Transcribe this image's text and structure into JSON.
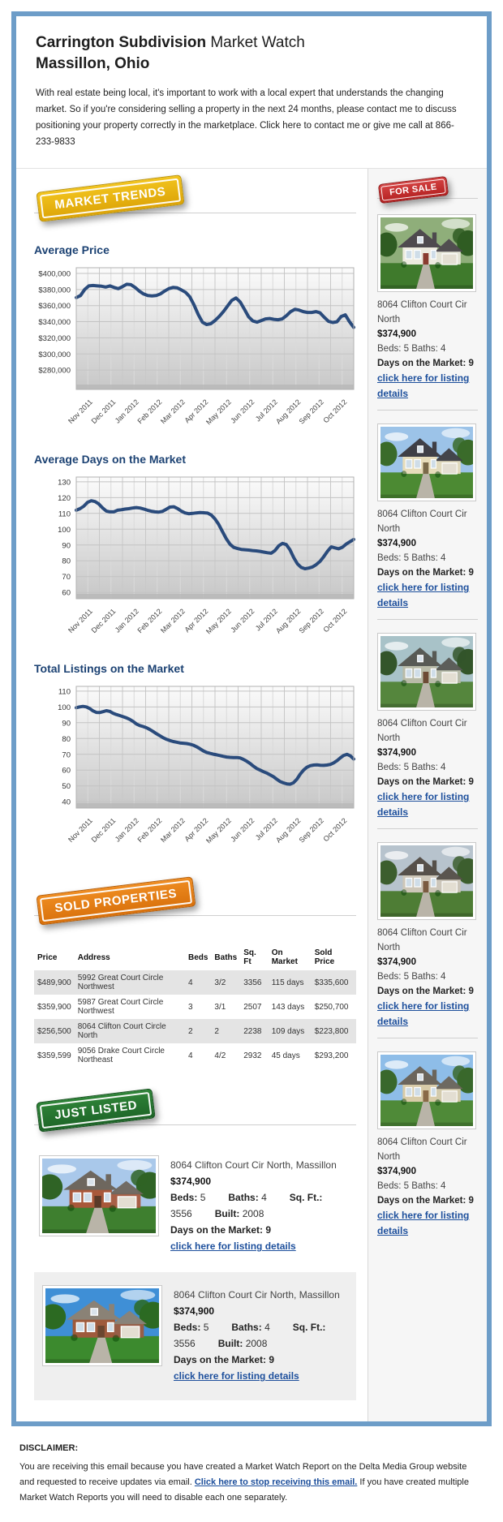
{
  "header": {
    "title_bold": "Carrington Subdivision",
    "title_rest": " Market Watch",
    "subtitle": "Massillon, Ohio",
    "intro": "With real estate being local, it's important to work with a local expert that understands the changing market. So if you're considering selling a property in the next 24 months, please contact me to discuss positioning your property correctly in the marketplace. Click here to contact me or give me call at 866-233-9833"
  },
  "badges": {
    "market_trends": "MARKET TRENDS",
    "for_sale": "FOR SALE",
    "sold_properties": "SOLD PROPERTIES",
    "just_listed": "JUST LISTED"
  },
  "colors": {
    "frame_border": "#6d9dc8",
    "chart_line": "#2a4b7c",
    "heading_blue": "#1c4273",
    "link_blue": "#1d4f9c",
    "badge_yellow": "#e5b010",
    "badge_red": "#c02f2f",
    "badge_orange": "#e47e16",
    "badge_green": "#26742f"
  },
  "chart_data": [
    {
      "type": "line",
      "title": "Average Price",
      "categories": [
        "Nov 2011",
        "Dec 2011",
        "Jan 2012",
        "Feb 2012",
        "Mar 2012",
        "Apr 2012",
        "May 2012",
        "Jun 2012",
        "Jul 2012",
        "Aug 2012",
        "Sep 2012",
        "Oct 2012"
      ],
      "ylim": [
        256000,
        407000
      ],
      "yticks": [
        400000,
        380000,
        360000,
        340000,
        320000,
        300000,
        280000
      ],
      "ytick_labels": [
        "$400,000",
        "$380,000",
        "$360,000",
        "$340,000",
        "$320,000",
        "$300,000",
        "$280,000"
      ],
      "legend": "none",
      "grid": true,
      "values": [
        370000,
        372500,
        380000,
        384500,
        385000,
        384500,
        384000,
        383000,
        384500,
        382500,
        381000,
        383500,
        386500,
        386000,
        382500,
        378000,
        374500,
        372500,
        372000,
        372500,
        374500,
        378000,
        381000,
        382500,
        382000,
        379500,
        376500,
        371000,
        361000,
        349000,
        339500,
        336500,
        337500,
        341500,
        346500,
        352500,
        359500,
        366500,
        369500,
        364500,
        355500,
        346000,
        341000,
        339500,
        341500,
        343500,
        344000,
        343000,
        342500,
        343500,
        347500,
        352500,
        355500,
        354500,
        352500,
        351500,
        351500,
        352500,
        351000,
        345500,
        340500,
        339000,
        340000,
        346500,
        348500,
        340000,
        333000
      ]
    },
    {
      "type": "line",
      "title": "Average Days on the Market",
      "categories": [
        "Nov 2011",
        "Dec 2011",
        "Jan 2012",
        "Feb 2012",
        "Mar 2012",
        "Apr 2012",
        "May 2012",
        "Jun 2012",
        "Jul 2012",
        "Aug 2012",
        "Sep 2012",
        "Oct 2012"
      ],
      "ylim": [
        56,
        133
      ],
      "yticks": [
        130,
        120,
        110,
        100,
        90,
        80,
        70,
        60
      ],
      "ytick_labels": [
        "130",
        "120",
        "110",
        "100",
        "90",
        "80",
        "70",
        "60"
      ],
      "legend": "none",
      "grid": true,
      "values": [
        112,
        113,
        114.5,
        117,
        118,
        117.5,
        116,
        113.5,
        111.5,
        111,
        111,
        112,
        112.3,
        112.7,
        113,
        113.4,
        113.7,
        113.4,
        112.8,
        112,
        111.4,
        111,
        110.8,
        111.3,
        112.6,
        114,
        114.2,
        113.1,
        111.5,
        110.3,
        109.8,
        110,
        110.3,
        110.5,
        110.4,
        110.2,
        109,
        106.5,
        103,
        98.5,
        94,
        90.5,
        88.5,
        87.8,
        87.2,
        87,
        86.8,
        86.5,
        86.3,
        86,
        85.5,
        85.1,
        84.8,
        86.5,
        89.5,
        91,
        90.3,
        87,
        82,
        78,
        75.8,
        75,
        75.4,
        76.1,
        77.6,
        79.6,
        82.6,
        86,
        88.8,
        88.2,
        87.6,
        88.6,
        90.6,
        92.1,
        93.5
      ]
    },
    {
      "type": "line",
      "title": "Total Listings on the Market",
      "categories": [
        "Nov 2011",
        "Dec 2011",
        "Jan 2012",
        "Feb 2012",
        "Mar 2012",
        "Apr 2012",
        "May 2012",
        "Jun 2012",
        "Jul 2012",
        "Aug 2012",
        "Sep 2012",
        "Oct 2012"
      ],
      "ylim": [
        36,
        113
      ],
      "yticks": [
        110,
        100,
        90,
        80,
        70,
        60,
        50,
        40
      ],
      "ytick_labels": [
        "110",
        "100",
        "90",
        "80",
        "70",
        "60",
        "50",
        "40"
      ],
      "legend": "none",
      "grid": true,
      "values": [
        99.5,
        100,
        100.3,
        100,
        99,
        97.5,
        96.5,
        96.4,
        97,
        97.6,
        97.2,
        96,
        95.2,
        94.5,
        93.8,
        93.1,
        92.1,
        90.8,
        89.2,
        88.2,
        87.6,
        86.8,
        85.7,
        84.4,
        83,
        81.8,
        80.5,
        79.5,
        78.7,
        78.1,
        77.7,
        77.2,
        77,
        76.8,
        76.4,
        75.8,
        74.8,
        73.5,
        72.2,
        71.2,
        70.6,
        70.1,
        69.7,
        69.2,
        68.7,
        68.3,
        68.1,
        68,
        68,
        67.7,
        66.8,
        65.6,
        64.2,
        62.5,
        61,
        60,
        59,
        58.1,
        57,
        55.8,
        54.2,
        52.8,
        51.9,
        51.3,
        51.1,
        52,
        54.3,
        57.5,
        60,
        61.8,
        62.8,
        63.2,
        63.3,
        63.1,
        63,
        63.2,
        63.6,
        64.6,
        66,
        67.8,
        69.3,
        70,
        69,
        67
      ]
    }
  ],
  "sold_table": {
    "headers": [
      "Price",
      "Address",
      "Beds",
      "Baths",
      "Sq. Ft",
      "On Market",
      "Sold Price"
    ],
    "rows": [
      [
        "$489,900",
        "5992 Great Court Circle Northwest",
        "4",
        "3/2",
        "3356",
        "115 days",
        "$335,600"
      ],
      [
        "$359,900",
        "5987 Great Court Circle Northwest",
        "3",
        "3/1",
        "2507",
        "143 days",
        "$250,700"
      ],
      [
        "$256,500",
        "8064 Clifton Court Circle North",
        "2",
        "2",
        "2238",
        "109 days",
        "$223,800"
      ],
      [
        "$359,599",
        "9056 Drake Court Circle Northeast",
        "4",
        "4/2",
        "2932",
        "45 days",
        "$293,200"
      ]
    ]
  },
  "for_sale_listings": [
    {
      "address": "8064 Clifton Court Cir North",
      "price": "$374,900",
      "beds_baths": "Beds: 5 Baths: 4",
      "dom": "Days on the Market: 9",
      "link": "click here for listing details"
    },
    {
      "address": "8064 Clifton Court Cir North",
      "price": "$374,900",
      "beds_baths": "Beds: 5 Baths: 4",
      "dom": "Days on the Market: 9",
      "link": "click here for listing details"
    },
    {
      "address": "8064 Clifton Court Cir North",
      "price": "$374,900",
      "beds_baths": "Beds: 5 Baths: 4",
      "dom": "Days on the Market: 9",
      "link": "click here for listing details"
    },
    {
      "address": "8064 Clifton Court Cir North",
      "price": "$374,900",
      "beds_baths": "Beds: 5 Baths: 4",
      "dom": "Days on the Market: 9",
      "link": "click here for listing details"
    },
    {
      "address": "8064 Clifton Court Cir North",
      "price": "$374,900",
      "beds_baths": "Beds: 5 Baths: 4",
      "dom": "Days on the Market: 9",
      "link": "click here for listing details"
    }
  ],
  "just_listed_listings": [
    {
      "address": "8064 Clifton Court Cir North, Massillon",
      "price": "$374,900",
      "specs": [
        {
          "label": "Beds:",
          "value": "5"
        },
        {
          "label": "Baths:",
          "value": "4"
        },
        {
          "label": "Sq. Ft.:",
          "value": "3556"
        },
        {
          "label": "Built:",
          "value": "2008"
        }
      ],
      "dom": "Days on the Market: 9",
      "link": "click here for listing details"
    },
    {
      "address": "8064 Clifton Court Cir North, Massillon",
      "price": "$374,900",
      "specs": [
        {
          "label": "Beds:",
          "value": "5"
        },
        {
          "label": "Baths:",
          "value": "4"
        },
        {
          "label": "Sq. Ft.:",
          "value": "3556"
        },
        {
          "label": "Built:",
          "value": "2008"
        }
      ],
      "dom": "Days on the Market: 9",
      "link": "click here for listing details"
    }
  ],
  "disclaimer": {
    "heading": "DISCLAIMER:",
    "before_link": "You are receiving this email because you have created a Market Watch Report on the Delta Media Group website and requested to receive updates via email. ",
    "link": "Click here to stop receiving this email.",
    "after_link": " If you have created multiple Market Watch Reports you will need to disable each one separately."
  }
}
